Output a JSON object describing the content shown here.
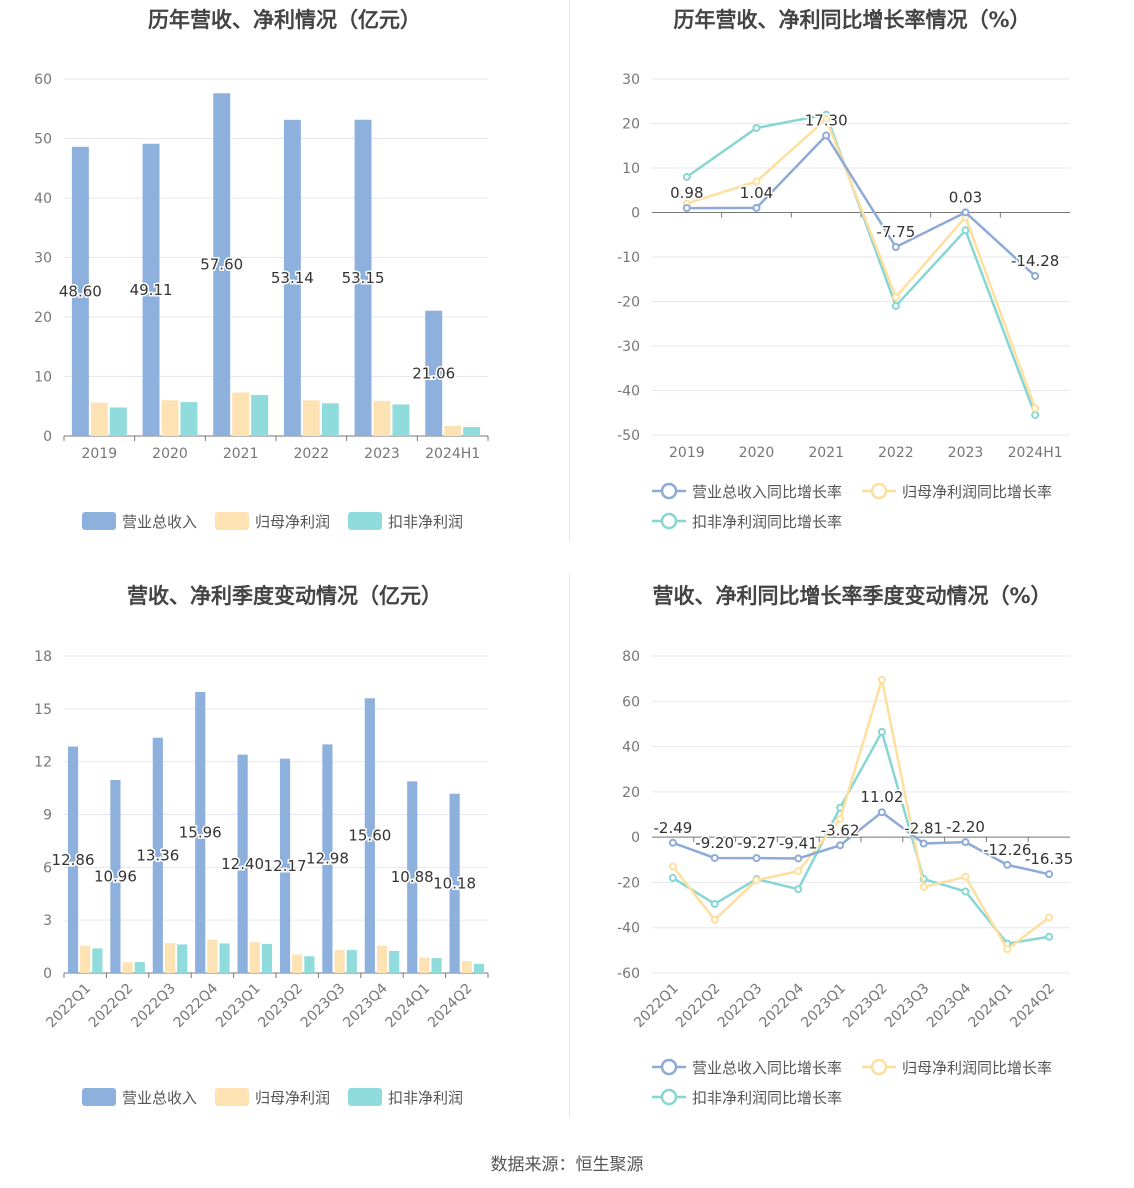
{
  "colors": {
    "revenue": "#8eb0dc",
    "net_profit": "#fde2b4",
    "deducted_profit": "#90dcdc",
    "rev_line": "#8eaad6",
    "np_line": "#fedf9e",
    "dp_line": "#86d6d4"
  },
  "source": "数据来源：恒生聚源",
  "chart_data": [
    {
      "type": "bar",
      "title": "历年营收、净利情况（亿元）",
      "categories": [
        "2019",
        "2020",
        "2021",
        "2022",
        "2023",
        "2024H1"
      ],
      "ylim": [
        0,
        60
      ],
      "yticks": [
        0,
        10,
        20,
        30,
        40,
        50,
        60
      ],
      "series": [
        {
          "name": "营业总收入",
          "values": [
            48.6,
            49.11,
            57.6,
            53.14,
            53.15,
            21.06
          ]
        },
        {
          "name": "归母净利润",
          "values": [
            5.6,
            6.0,
            7.3,
            6.0,
            5.9,
            1.7
          ]
        },
        {
          "name": "扣非净利润",
          "values": [
            4.8,
            5.7,
            6.9,
            5.5,
            5.3,
            1.5
          ]
        }
      ],
      "data_labels": [
        "48.60",
        "49.11",
        "57.60",
        "53.14",
        "53.15",
        "21.06"
      ],
      "grid": true,
      "legend_position": "bottom"
    },
    {
      "type": "line",
      "title": "历年营收、净利同比增长率情况（%）",
      "categories": [
        "2019",
        "2020",
        "2021",
        "2022",
        "2023",
        "2024H1"
      ],
      "ylim": [
        -50,
        30
      ],
      "yticks": [
        -50,
        -40,
        -30,
        -20,
        -10,
        0,
        10,
        20,
        30
      ],
      "series": [
        {
          "name": "营业总收入同比增长率",
          "values": [
            0.98,
            1.04,
            17.3,
            -7.75,
            0.03,
            -14.28
          ]
        },
        {
          "name": "归母净利润同比增长率",
          "values": [
            2,
            7,
            21,
            -19,
            -1,
            -44
          ]
        },
        {
          "name": "扣非净利润同比增长率",
          "values": [
            8,
            19,
            22,
            -21,
            -4,
            -45.5
          ]
        }
      ],
      "data_labels": [
        "0.98",
        "1.04",
        "17.30",
        "-7.75",
        "0.03",
        "-14.28"
      ],
      "grid": true,
      "legend_position": "bottom"
    },
    {
      "type": "bar",
      "title": "营收、净利季度变动情况（亿元）",
      "categories": [
        "2022Q1",
        "2022Q2",
        "2022Q3",
        "2022Q4",
        "2023Q1",
        "2023Q2",
        "2023Q3",
        "2023Q4",
        "2024Q1",
        "2024Q2"
      ],
      "ylim": [
        0,
        18
      ],
      "yticks": [
        0,
        3,
        6,
        9,
        12,
        15,
        18
      ],
      "series": [
        {
          "name": "营业总收入",
          "values": [
            12.86,
            10.96,
            13.36,
            15.96,
            12.4,
            12.17,
            12.98,
            15.6,
            10.88,
            10.18
          ]
        },
        {
          "name": "归母净利润",
          "values": [
            1.55,
            0.62,
            1.7,
            1.9,
            1.75,
            1.05,
            1.3,
            1.55,
            0.88,
            0.68
          ]
        },
        {
          "name": "扣非净利润",
          "values": [
            1.4,
            0.62,
            1.62,
            1.68,
            1.65,
            0.95,
            1.3,
            1.25,
            0.85,
            0.52
          ]
        }
      ],
      "data_labels": [
        "12.86",
        "10.96",
        "13.36",
        "15.96",
        "12.40",
        "12.17",
        "12.98",
        "15.60",
        "10.88",
        "10.18"
      ],
      "grid": true,
      "legend_position": "bottom"
    },
    {
      "type": "line",
      "title": "营收、净利同比增长率季度变动情况（%）",
      "categories": [
        "2022Q1",
        "2022Q2",
        "2022Q3",
        "2022Q4",
        "2023Q1",
        "2023Q2",
        "2023Q3",
        "2023Q4",
        "2024Q1",
        "2024Q2"
      ],
      "ylim": [
        -60,
        80
      ],
      "yticks": [
        -60,
        -40,
        -20,
        0,
        20,
        40,
        60,
        80
      ],
      "series": [
        {
          "name": "营业总收入同比增长率",
          "values": [
            -2.49,
            -9.2,
            -9.27,
            -9.41,
            -3.62,
            11.02,
            -2.81,
            -2.2,
            -12.26,
            -16.35
          ]
        },
        {
          "name": "归母净利润同比增长率",
          "values": [
            -13,
            -36.5,
            -19,
            -15,
            8,
            69.5,
            -22,
            -17.5,
            -49.5,
            -35.5
          ]
        },
        {
          "name": "扣非净利润同比增长率",
          "values": [
            -18,
            -29.5,
            -18.5,
            -23,
            13,
            46.5,
            -18.5,
            -24,
            -47,
            -44
          ]
        }
      ],
      "data_labels": [
        "-2.49",
        "-9.20",
        "-9.27",
        "-9.41",
        "-3.62",
        "11.02",
        "-2.81",
        "-2.20",
        "-12.26",
        "-16.35"
      ],
      "grid": true,
      "legend_position": "bottom"
    }
  ]
}
